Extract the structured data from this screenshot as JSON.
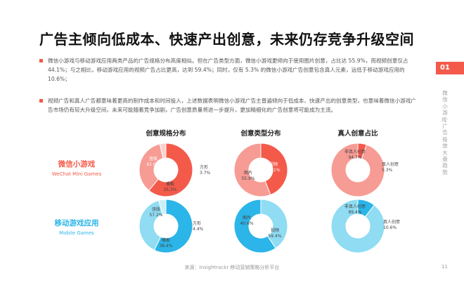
{
  "header": {
    "title": "广告主倾向低成本、快速产出创意，未来仍存竞争升级空间",
    "section_tag": "01",
    "side_label": "微信小游戏·广告投放大盘趋势"
  },
  "bullets": [
    "微信小游戏与移动游戏应用两类产品的广告规格分布高度相似。但在广告类型方面，微信小游戏更倾向于使用图片创意，占比达 55.9%，而视频创意仅占 44.1%；与之相比，移动游戏应用的视频广告占比更高，达到 59.4%；同时，仅有 5.3% 的微信小游戏广告创意包含真人元素，远低于移动游戏应用的 10.6%；",
    "视频广告和真人广告都意味着更高的制作成本和时间投入，上述数据表明微信小游戏广告主普遍倾向于低成本、快速产出的创意类型，也意味着微信小游戏广告市场仍有较大升级空间，未来可能随着竞争加剧，广告创意质量将进一步提升，更加精细化的广告创意将可能成为主流。"
  ],
  "columns": [
    "创意规格分布",
    "创意类型分布",
    "真人创意占比"
  ],
  "rows": [
    {
      "zh": "微信小游戏",
      "en": "WeChat Mini Games"
    },
    {
      "zh": "移动游戏应用",
      "en": "Mobile Games"
    }
  ],
  "chart_data": [
    {
      "type": "pie",
      "title": "创意规格分布 - 微信小游戏",
      "labels": [
        "竖版",
        "横板",
        "方形"
      ],
      "values": [
        61.0,
        35.3,
        3.7
      ],
      "label_text": [
        "竖版\n61.0%",
        "横板\n35.3%",
        "方形\n3.7%"
      ]
    },
    {
      "type": "pie",
      "title": "创意类型分布 - 微信小游戏",
      "labels": [
        "视频",
        "图片"
      ],
      "values": [
        44.1,
        55.9
      ],
      "label_text": [
        "视频\n44.1%",
        "图片\n55.9%"
      ]
    },
    {
      "type": "pie",
      "title": "真人创意占比 - 微信小游戏",
      "labels": [
        "真人创意",
        "非真人创意"
      ],
      "values": [
        5.3,
        94.7
      ],
      "label_text": [
        "真人创意\n5.3%",
        "非真人创意\n94.7%"
      ]
    },
    {
      "type": "pie",
      "title": "创意规格分布 - 移动游戏应用",
      "labels": [
        "竖版",
        "横板",
        "方形"
      ],
      "values": [
        57.2,
        38.4,
        4.4
      ],
      "label_text": [
        "竖版\n57.2%",
        "横板\n38.4%",
        "方形\n4.4%"
      ]
    },
    {
      "type": "pie",
      "title": "创意类型分布 - 移动游戏应用",
      "labels": [
        "图片",
        "视频"
      ],
      "values": [
        40.6,
        59.4
      ],
      "label_text": [
        "图片\n40.6%",
        "视频\n59.4%"
      ]
    },
    {
      "type": "pie",
      "title": "真人创意占比 - 移动游戏应用",
      "labels": [
        "真人创意",
        "非真人创意"
      ],
      "values": [
        10.6,
        89.4
      ],
      "label_text": [
        "真人创意\n10.6%",
        "非真人创意\n89.4%"
      ]
    }
  ],
  "colors": {
    "accent": "#f35a4a",
    "wechat": [
      "#f35a4a",
      "#f79b95",
      "#fad0cd"
    ],
    "mobile": [
      "#2bb5e8",
      "#8fdcf3",
      "#c9eefa"
    ]
  },
  "footer": {
    "source": "来源：Insightrackr 移动营销策略分析平台",
    "page": "11"
  }
}
